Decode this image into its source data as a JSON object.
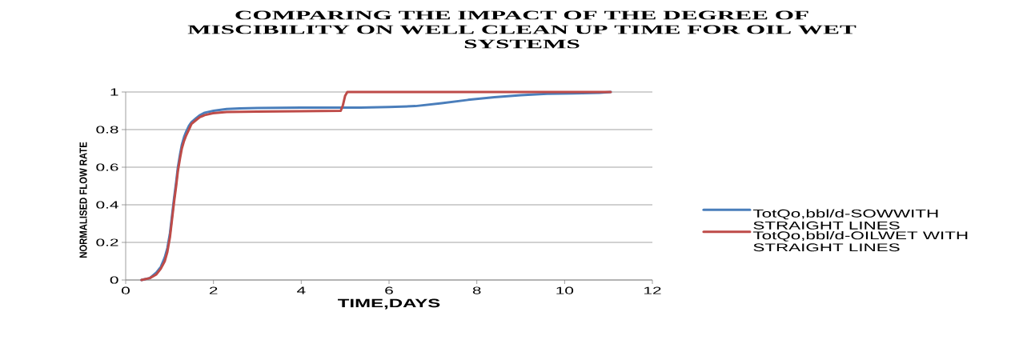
{
  "chart_data": {
    "type": "line",
    "title": "COMPARING THE IMPACT OF THE DEGREE OF MISCIBILITY ON WELL CLEAN UP TIME FOR OIL WET SYSTEMS",
    "xlabel": "TIME,DAYS",
    "ylabel": "NORMALISED FLOW RATE",
    "xlim": [
      0,
      12
    ],
    "xticks": [
      0,
      2,
      4,
      6,
      8,
      10,
      12
    ],
    "ylim": [
      0,
      1
    ],
    "yticks": [
      0,
      0.2,
      0.4,
      0.6,
      0.8,
      1
    ],
    "grid": "y",
    "legend": "right",
    "series": [
      {
        "name": "TotQo,bbl/d-SOWWITH STRAIGHT LINES",
        "color": "#4a7ebb",
        "x": [
          0.36,
          0.55,
          0.7,
          0.8,
          0.89,
          0.95,
          1.01,
          1.05,
          1.1,
          1.15,
          1.19,
          1.24,
          1.28,
          1.33,
          1.38,
          1.44,
          1.5,
          1.6,
          1.68,
          1.8,
          2,
          2.3,
          2.6,
          3,
          4,
          5,
          5.35,
          6,
          6.6,
          7.2,
          7.8,
          8.4,
          9,
          9.6,
          10.2,
          10.8,
          11.05
        ],
        "values": [
          0,
          0.01,
          0.04,
          0.07,
          0.12,
          0.17,
          0.25,
          0.33,
          0.43,
          0.52,
          0.6,
          0.67,
          0.72,
          0.76,
          0.79,
          0.82,
          0.84,
          0.86,
          0.875,
          0.89,
          0.9,
          0.91,
          0.913,
          0.915,
          0.917,
          0.917,
          0.917,
          0.92,
          0.925,
          0.94,
          0.958,
          0.972,
          0.983,
          0.99,
          0.993,
          0.996,
          1
        ]
      },
      {
        "name": "TotQo,bbl/d-OILWET WITH STRAIGHT LINES",
        "color": "#be4b48",
        "x": [
          0.36,
          0.55,
          0.7,
          0.8,
          0.89,
          0.95,
          1.01,
          1.05,
          1.1,
          1.15,
          1.19,
          1.24,
          1.28,
          1.33,
          1.38,
          1.44,
          1.5,
          1.6,
          1.68,
          1.8,
          1.99,
          2.3,
          3,
          4,
          4.9,
          4.95,
          5,
          5.05,
          6,
          8,
          10,
          11.05
        ],
        "values": [
          0,
          0.01,
          0.03,
          0.06,
          0.1,
          0.15,
          0.23,
          0.31,
          0.41,
          0.5,
          0.58,
          0.65,
          0.7,
          0.74,
          0.77,
          0.8,
          0.83,
          0.85,
          0.865,
          0.877,
          0.887,
          0.894,
          0.896,
          0.898,
          0.9,
          0.93,
          0.98,
          1,
          1,
          1,
          1,
          1
        ]
      }
    ]
  }
}
